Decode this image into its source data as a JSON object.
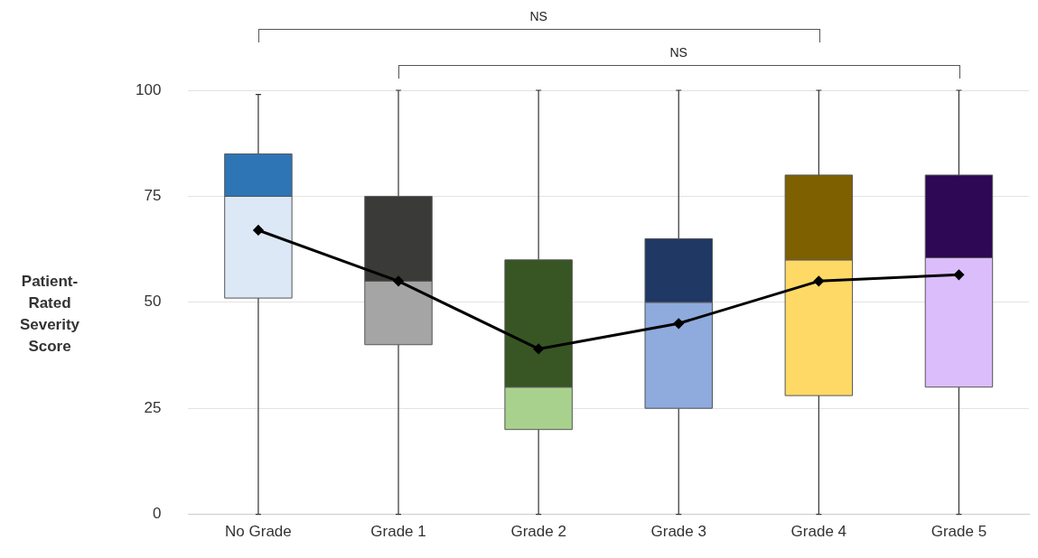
{
  "chart_data": {
    "type": "box",
    "ylabel": "Patient-Rated Severity Score",
    "categories": [
      "No Grade",
      "Grade 1",
      "Grade 2",
      "Grade 3",
      "Grade 4",
      "Grade 5"
    ],
    "ylim": [
      0,
      100
    ],
    "yticks": [
      0,
      25,
      50,
      75,
      100
    ],
    "grid": "y",
    "legend": false,
    "series": [
      {
        "type": "box",
        "colors": [
          [
            "#dce8f6",
            "#2e75b6"
          ],
          [
            "#a5a5a5",
            "#3a3a38"
          ],
          [
            "#a9d18e",
            "#375623"
          ],
          [
            "#8faadc",
            "#1f3864"
          ],
          [
            "#ffd966",
            "#7f6000"
          ],
          [
            "#dbbdfc",
            "#2e0854"
          ]
        ],
        "boxes": [
          {
            "low": 0,
            "q1": 51,
            "median": 75,
            "q3": 85,
            "high": 99
          },
          {
            "low": 0,
            "q1": 40,
            "median": 55,
            "q3": 75,
            "high": 100
          },
          {
            "low": 0,
            "q1": 20,
            "median": 30,
            "q3": 60,
            "high": 100
          },
          {
            "low": 0,
            "q1": 25,
            "median": 50,
            "q3": 65,
            "high": 100
          },
          {
            "low": 0,
            "q1": 28,
            "median": 60,
            "q3": 80,
            "high": 100
          },
          {
            "low": 0,
            "q1": 30,
            "median": 60.5,
            "q3": 80,
            "high": 100
          }
        ]
      },
      {
        "type": "line",
        "color": "#000000",
        "marker": "diamond",
        "x": [
          "No Grade",
          "Grade 1",
          "Grade 2",
          "Grade 3",
          "Grade 4",
          "Grade 5"
        ],
        "values": [
          67,
          55,
          39,
          45,
          55,
          56.5
        ]
      }
    ],
    "annotations": [
      "NS",
      "NS"
    ]
  }
}
